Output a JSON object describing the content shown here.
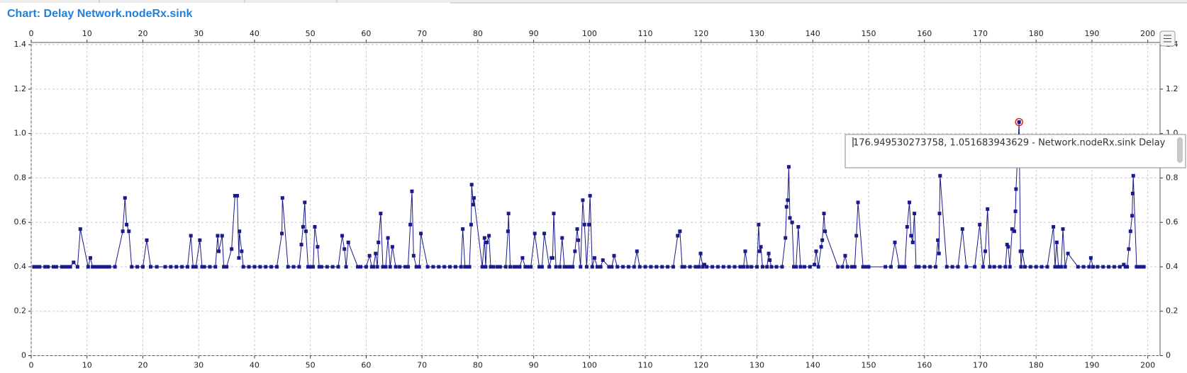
{
  "chart_data": {
    "type": "line",
    "title": "Chart: Delay Network.nodeRx.sink",
    "tooltip": "176.949530273758, 1.051683943629 - Network.nodeRx.sink Delay",
    "xlim": [
      0,
      202.2
    ],
    "ylim": [
      0,
      1.41
    ],
    "xticks": [
      0,
      10,
      20,
      30,
      40,
      50,
      60,
      70,
      80,
      90,
      100,
      110,
      120,
      130,
      140,
      150,
      160,
      170,
      180,
      190,
      200
    ],
    "yticks": [
      0,
      0.2,
      0.4,
      0.6,
      0.8,
      {
        "value": 1,
        "label": "1.0"
      },
      1.2,
      1.4
    ],
    "grid": true,
    "markers": true,
    "series": [
      {
        "color": "#1a1a8c",
        "x": [
          0.5,
          1,
          1.5,
          2.5,
          3,
          4,
          4.5,
          5.5,
          6,
          6.5,
          7,
          7.6,
          8.3,
          8.8,
          10.2,
          10.6,
          11,
          11.5,
          12,
          12.5,
          13,
          13.5,
          14,
          15,
          16.4,
          16.8,
          17.1,
          17.5,
          18,
          19,
          20,
          20.7,
          21.4,
          22.5,
          24,
          25,
          26,
          27,
          28,
          28.6,
          29,
          29.5,
          30.2,
          30.6,
          31,
          32,
          33,
          33.4,
          33.6,
          34.2,
          34.5,
          35,
          35.9,
          36.5,
          36.9,
          37.2,
          37.3,
          37.7,
          38,
          39,
          40,
          41,
          42,
          43,
          44,
          44.9,
          45,
          46,
          47,
          48,
          48.4,
          48.7,
          49,
          49.2,
          49.6,
          50,
          50.5,
          50.8,
          51.3,
          51.6,
          52,
          53,
          54,
          55,
          55.7,
          56.1,
          56.4,
          56.8,
          58.5,
          59,
          60,
          60.6,
          61,
          61.3,
          61.7,
          62,
          62.2,
          62.6,
          63,
          63.5,
          63.9,
          64.3,
          64.7,
          65.3,
          66,
          67,
          67.5,
          67.9,
          68.2,
          68.5,
          69,
          69.5,
          69.8,
          71,
          72,
          73,
          74,
          75,
          76,
          77,
          77.3,
          77.7,
          78,
          78.5,
          78.8,
          78.9,
          79.2,
          79.3,
          80.8,
          81.2,
          81.4,
          81.6,
          82,
          82.3,
          82.8,
          83.5,
          84,
          85,
          85.4,
          85.5,
          85.8,
          86.5,
          87,
          87.5,
          88,
          88.5,
          89,
          89.5,
          90.2,
          91,
          91.5,
          91.9,
          92.8,
          93.2,
          93.4,
          93.6,
          94,
          94.7,
          95.1,
          95.5,
          96,
          96.5,
          97,
          97.4,
          97.8,
          98,
          98.4,
          98.8,
          99.1,
          99.5,
          99.9,
          100.1,
          100.5,
          100.9,
          101.4,
          102,
          102.4,
          103.5,
          104,
          104.4,
          105,
          106,
          107,
          108,
          108.5,
          109,
          110,
          111,
          112,
          113,
          114,
          115,
          115.8,
          116.2,
          116.6,
          117,
          118,
          119,
          119.6,
          119.9,
          120.3,
          120.6,
          121,
          122,
          123,
          124,
          125,
          126,
          127,
          127.6,
          127.9,
          128.3,
          129,
          130,
          130.3,
          130.5,
          130.7,
          131,
          131.8,
          132.1,
          132.3,
          132.6,
          133.5,
          134.5,
          135.1,
          135.3,
          135.5,
          135.7,
          135.9,
          136.3,
          136.6,
          137,
          137.4,
          137.8,
          138.5,
          139.5,
          140.3,
          140.6,
          141,
          141.5,
          141.7,
          142,
          142.2,
          144.5,
          145.3,
          145.8,
          146.2,
          147,
          147.5,
          147.8,
          148.1,
          149,
          149.5,
          150,
          153,
          154,
          154.7,
          155.5,
          156,
          156.5,
          156.9,
          157.3,
          157.6,
          157.9,
          158.2,
          158.5,
          159,
          160,
          161,
          162,
          162.4,
          162.6,
          162.7,
          162.8,
          164,
          165,
          166,
          166.8,
          167.5,
          169,
          169.9,
          170.5,
          170.9,
          171.3,
          171.7,
          172.5,
          173.5,
          174.5,
          174.8,
          175,
          175.3,
          175.7,
          176.1,
          176.3,
          176.4,
          176.949530273758,
          177.2,
          177.3,
          177.5,
          178,
          179,
          180,
          181,
          182,
          183.1,
          183.4,
          183.7,
          184,
          184.5,
          184.8,
          185.2,
          185.7,
          187.5,
          188.5,
          189.5,
          189.8,
          190.2,
          191,
          192,
          193,
          194,
          195,
          195.7,
          196,
          196.3,
          196.6,
          196.9,
          197.2,
          197.3,
          197.4,
          198,
          198.5,
          199,
          199.3
        ],
        "values": [
          0.4,
          0.4,
          0.4,
          0.4,
          0.4,
          0.4,
          0.4,
          0.4,
          0.4,
          0.4,
          0.4,
          0.42,
          0.4,
          0.57,
          0.4,
          0.44,
          0.4,
          0.4,
          0.4,
          0.4,
          0.4,
          0.4,
          0.4,
          0.4,
          0.56,
          0.71,
          0.59,
          0.56,
          0.4,
          0.4,
          0.4,
          0.52,
          0.4,
          0.4,
          0.4,
          0.4,
          0.4,
          0.4,
          0.4,
          0.54,
          0.4,
          0.4,
          0.52,
          0.4,
          0.4,
          0.4,
          0.4,
          0.54,
          0.47,
          0.54,
          0.4,
          0.4,
          0.48,
          0.72,
          0.72,
          0.44,
          0.56,
          0.47,
          0.4,
          0.4,
          0.4,
          0.4,
          0.4,
          0.4,
          0.4,
          0.55,
          0.71,
          0.4,
          0.4,
          0.4,
          0.5,
          0.58,
          0.69,
          0.56,
          0.4,
          0.4,
          0.4,
          0.58,
          0.49,
          0.4,
          0.4,
          0.4,
          0.4,
          0.4,
          0.54,
          0.48,
          0.4,
          0.51,
          0.4,
          0.4,
          0.4,
          0.45,
          0.4,
          0.4,
          0.46,
          0.4,
          0.51,
          0.64,
          0.4,
          0.4,
          0.53,
          0.4,
          0.49,
          0.4,
          0.4,
          0.4,
          0.4,
          0.59,
          0.74,
          0.45,
          0.4,
          0.4,
          0.55,
          0.4,
          0.4,
          0.4,
          0.4,
          0.4,
          0.4,
          0.4,
          0.57,
          0.4,
          0.4,
          0.4,
          0.59,
          0.77,
          0.68,
          0.71,
          0.4,
          0.53,
          0.4,
          0.51,
          0.54,
          0.4,
          0.4,
          0.4,
          0.4,
          0.4,
          0.56,
          0.64,
          0.4,
          0.4,
          0.4,
          0.4,
          0.44,
          0.4,
          0.4,
          0.4,
          0.55,
          0.4,
          0.4,
          0.55,
          0.4,
          0.44,
          0.44,
          0.64,
          0.4,
          0.4,
          0.53,
          0.4,
          0.4,
          0.4,
          0.4,
          0.47,
          0.57,
          0.52,
          0.4,
          0.7,
          0.59,
          0.4,
          0.59,
          0.72,
          0.4,
          0.44,
          0.4,
          0.4,
          0.43,
          0.4,
          0.4,
          0.45,
          0.4,
          0.4,
          0.4,
          0.4,
          0.47,
          0.4,
          0.4,
          0.4,
          0.4,
          0.4,
          0.4,
          0.4,
          0.54,
          0.56,
          0.4,
          0.4,
          0.4,
          0.4,
          0.4,
          0.46,
          0.4,
          0.41,
          0.4,
          0.4,
          0.4,
          0.4,
          0.4,
          0.4,
          0.4,
          0.4,
          0.47,
          0.4,
          0.4,
          0.4,
          0.59,
          0.47,
          0.49,
          0.4,
          0.4,
          0.46,
          0.43,
          0.4,
          0.4,
          0.4,
          0.53,
          0.67,
          0.7,
          0.85,
          0.62,
          0.6,
          0.4,
          0.4,
          0.58,
          0.4,
          0.4,
          0.4,
          0.41,
          0.47,
          0.4,
          0.49,
          0.52,
          0.64,
          0.56,
          0.4,
          0.4,
          0.45,
          0.4,
          0.4,
          0.4,
          0.54,
          0.69,
          0.4,
          0.4,
          0.4,
          0.4,
          0.4,
          0.51,
          0.4,
          0.4,
          0.4,
          0.58,
          0.69,
          0.54,
          0.51,
          0.64,
          0.4,
          0.4,
          0.4,
          0.4,
          0.4,
          0.52,
          0.46,
          0.64,
          0.81,
          0.4,
          0.4,
          0.4,
          0.57,
          0.4,
          0.4,
          0.59,
          0.4,
          0.47,
          0.66,
          0.4,
          0.4,
          0.4,
          0.4,
          0.5,
          0.49,
          0.4,
          0.57,
          0.56,
          0.65,
          0.75,
          1.051683943629,
          0.47,
          0.4,
          0.47,
          0.4,
          0.4,
          0.4,
          0.4,
          0.4,
          0.58,
          0.4,
          0.51,
          0.4,
          0.4,
          0.57,
          0.4,
          0.46,
          0.4,
          0.4,
          0.4,
          0.44,
          0.4,
          0.4,
          0.4,
          0.4,
          0.4,
          0.4,
          0.41,
          0.4,
          0.4,
          0.48,
          0.56,
          0.63,
          0.73,
          0.81,
          0.4,
          0.4,
          0.4,
          0.4
        ]
      }
    ]
  }
}
